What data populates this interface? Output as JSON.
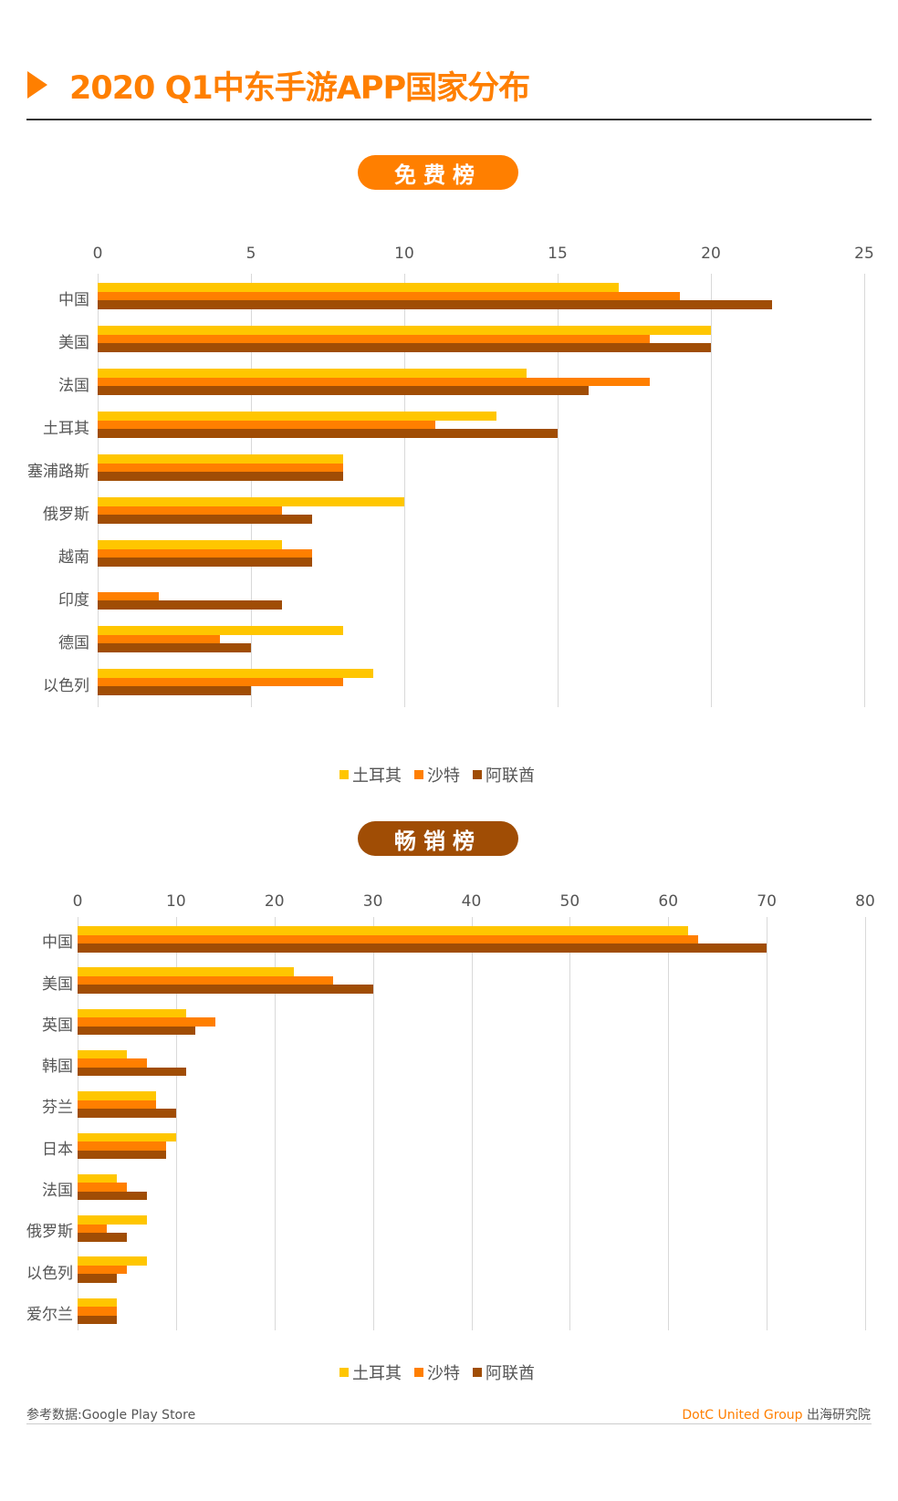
{
  "title": "2020 Q1中东手游APP国家分布",
  "colors": {
    "turkey": "#ffc600",
    "saudi": "#ff7f00",
    "uae": "#a04d05",
    "accent": "#ff7f00"
  },
  "legend": [
    "土耳其",
    "沙特",
    "阿联酋"
  ],
  "footer": {
    "source": "参考数据:Google Play Store",
    "brand": "DotC United Group",
    "brand_suffix": "出海研究院"
  },
  "chart_data": [
    {
      "type": "bar",
      "orientation": "horizontal",
      "title": "免费榜",
      "categories": [
        "中国",
        "美国",
        "法国",
        "土耳其",
        "塞浦路斯",
        "俄罗斯",
        "越南",
        "印度",
        "德国",
        "以色列"
      ],
      "series": [
        {
          "name": "土耳其",
          "values": [
            17,
            20,
            14,
            13,
            8,
            10,
            6,
            0,
            8,
            9
          ]
        },
        {
          "name": "沙特",
          "values": [
            19,
            18,
            18,
            11,
            8,
            6,
            7,
            2,
            4,
            8
          ]
        },
        {
          "name": "阿联酋",
          "values": [
            22,
            20,
            16,
            15,
            8,
            7,
            7,
            6,
            5,
            5
          ]
        }
      ],
      "xlim": [
        0,
        25
      ],
      "xticks": [
        0,
        5,
        10,
        15,
        20,
        25
      ],
      "xlabel": "",
      "ylabel": "",
      "grid": true,
      "legend_position": "bottom"
    },
    {
      "type": "bar",
      "orientation": "horizontal",
      "title": "畅销榜",
      "categories": [
        "中国",
        "美国",
        "英国",
        "韩国",
        "芬兰",
        "日本",
        "法国",
        "俄罗斯",
        "以色列",
        "爱尔兰"
      ],
      "series": [
        {
          "name": "土耳其",
          "values": [
            62,
            22,
            11,
            5,
            8,
            10,
            4,
            7,
            7,
            4
          ]
        },
        {
          "name": "沙特",
          "values": [
            63,
            26,
            14,
            7,
            8,
            9,
            5,
            3,
            5,
            4
          ]
        },
        {
          "name": "阿联酋",
          "values": [
            70,
            30,
            12,
            11,
            10,
            9,
            7,
            5,
            4,
            4
          ]
        }
      ],
      "xlim": [
        0,
        80
      ],
      "xticks": [
        0,
        10,
        20,
        30,
        40,
        50,
        60,
        70,
        80
      ],
      "xlabel": "",
      "ylabel": "",
      "grid": true,
      "legend_position": "bottom"
    }
  ]
}
